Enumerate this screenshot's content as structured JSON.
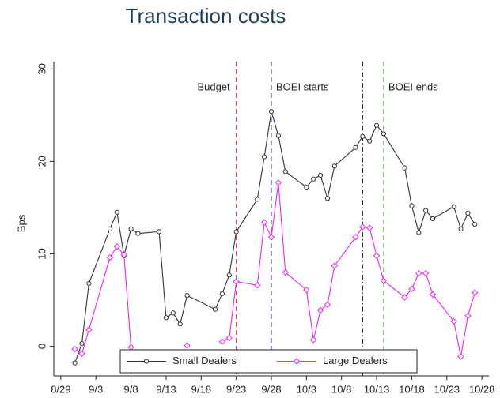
{
  "chart_data": {
    "type": "line",
    "title": "Transaction costs",
    "ylabel": "Bps",
    "x": [
      "8/31",
      "9/1",
      "9/2",
      "9/5",
      "9/6",
      "9/7",
      "9/8",
      "9/9",
      "9/12",
      "9/13",
      "9/14",
      "9/15",
      "9/16",
      "9/20",
      "9/21",
      "9/22",
      "9/23",
      "9/26",
      "9/27",
      "9/28",
      "9/29",
      "9/30",
      "10/3",
      "10/4",
      "10/5",
      "10/6",
      "10/7",
      "10/10",
      "10/11",
      "10/12",
      "10/13",
      "10/14",
      "10/17",
      "10/18",
      "10/19",
      "10/20",
      "10/21",
      "10/24",
      "10/25",
      "10/26",
      "10/27"
    ],
    "series": [
      {
        "name": "Small Dealers",
        "color": "#333333",
        "marker": "circle",
        "values": [
          -1.8,
          0.3,
          6.8,
          12.7,
          14.5,
          9.8,
          12.7,
          12.2,
          12.4,
          3.1,
          3.6,
          2.4,
          5.5,
          4.0,
          5.7,
          7.7,
          12.4,
          15.9,
          20.5,
          25.4,
          22.8,
          18.9,
          17.2,
          18.1,
          18.5,
          16.0,
          19.5,
          21.5,
          22.7,
          22.2,
          23.9,
          23.0,
          19.3,
          15.2,
          12.3,
          14.7,
          13.8,
          15.1,
          12.7,
          14.4,
          13.2
        ]
      },
      {
        "name": "Large Dealers",
        "color": "#ee22ee",
        "marker": "diamond",
        "values": [
          -0.3,
          -0.8,
          1.8,
          9.6,
          10.8,
          9.9,
          -0.1,
          null,
          null,
          null,
          null,
          null,
          0.1,
          null,
          0.5,
          0.9,
          7.0,
          6.6,
          13.4,
          11.8,
          17.7,
          8.0,
          6.1,
          0.7,
          3.9,
          4.5,
          8.7,
          11.8,
          12.9,
          12.8,
          9.8,
          7.1,
          5.3,
          6.2,
          7.9,
          7.9,
          5.6,
          2.7,
          -1.1,
          3.3,
          5.8
        ]
      }
    ],
    "xlim": [
      "8/28",
      "10/29"
    ],
    "xticks": [
      "8/29",
      "9/3",
      "9/8",
      "9/13",
      "9/18",
      "9/23",
      "9/28",
      "10/3",
      "10/8",
      "10/13",
      "10/18",
      "10/23",
      "10/28"
    ],
    "ylim": [
      -3.2,
      30.8
    ],
    "yticks": [
      0,
      10,
      20,
      30
    ],
    "annotations": [
      {
        "x": "9/23",
        "label": "Budget",
        "color": "#d62728",
        "dash": "dashed",
        "side": "left"
      },
      {
        "x": "9/28",
        "label": "BOEI starts",
        "color": "#1f3fbf",
        "dash": "dashed",
        "side": "right"
      },
      {
        "x": "10/11",
        "color": "#000000",
        "dash": "dashdot"
      },
      {
        "x": "10/14",
        "label": "BOEI ends",
        "color": "#2ca02c",
        "dash": "dashed",
        "side": "right"
      }
    ],
    "legend": "bottom"
  }
}
